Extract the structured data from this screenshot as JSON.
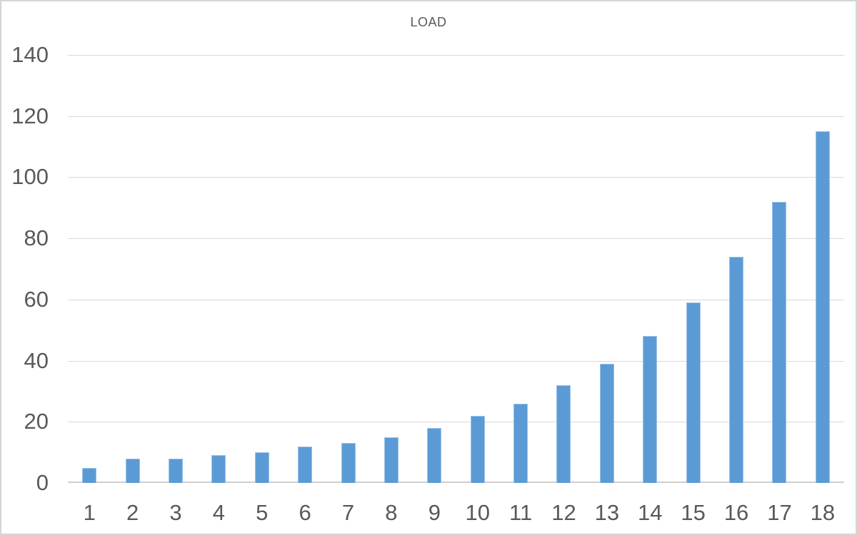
{
  "chart_data": {
    "type": "bar",
    "title": "LOAD",
    "categories": [
      "1",
      "2",
      "3",
      "4",
      "5",
      "6",
      "7",
      "8",
      "9",
      "10",
      "11",
      "12",
      "13",
      "14",
      "15",
      "16",
      "17",
      "18"
    ],
    "values": [
      5,
      8,
      8,
      9,
      10,
      12,
      13,
      15,
      18,
      22,
      26,
      32,
      39,
      48,
      59,
      74,
      92,
      115
    ],
    "xlabel": "",
    "ylabel": "",
    "ylim": [
      0,
      140
    ],
    "ytick_step": 20,
    "ytick_labels": [
      "0",
      "20",
      "40",
      "60",
      "80",
      "100",
      "120",
      "140"
    ],
    "grid": true,
    "legend": false,
    "legend_position": "none",
    "colors": {
      "bar_fill": "#5b9bd5",
      "bar_edge": "#9bc2e8",
      "gridline": "#d9d9d9",
      "axis_line": "#cfcfcf",
      "text": "#595959",
      "frame_border": "#d5d5d5",
      "background": "#ffffff"
    }
  }
}
